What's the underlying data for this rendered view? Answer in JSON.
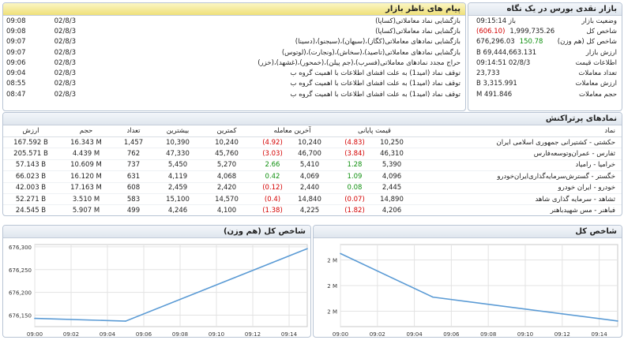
{
  "market": {
    "title": "بازار نقدی بورس در یک نگاه",
    "rows": [
      {
        "label": "وضعیت بازار",
        "value": "باز 09:15:14",
        "extra": ""
      },
      {
        "label": "شاخص کل",
        "value": "1,999,735.26",
        "extra": "(606.10)",
        "extra_class": "neg"
      },
      {
        "label": "شاخص کل (هم وزن)",
        "value": "676,296.03",
        "extra": "150.78",
        "extra_class": "pos"
      },
      {
        "label": "ارزش بازار",
        "value": "69,444,663.131 B",
        "extra": ""
      },
      {
        "label": "اطلاعات قیمت",
        "value": "02/8/3 09:14:51",
        "extra": ""
      },
      {
        "label": "تعداد معاملات",
        "value": "23,733",
        "extra": ""
      },
      {
        "label": "ارزش معاملات",
        "value": "3,315.991 B",
        "extra": ""
      },
      {
        "label": "حجم معاملات",
        "value": "491.846 M",
        "extra": ""
      }
    ]
  },
  "messages": {
    "title": "پیام های ناظر بازار",
    "rows": [
      {
        "date": "02/8/3",
        "time": "09:08",
        "text": "بازگشایی نماد معاملاتی(کساپا)"
      },
      {
        "date": "02/8/3",
        "time": "09:08",
        "text": "بازگشایی نماد معاملاتی(کساپا)"
      },
      {
        "date": "02/8/3",
        "time": "09:07",
        "text": "بازگشایی نمادهای معاملاتی(کگاز)،(سبهان)،(سبجنو)،(دسینا)"
      },
      {
        "date": "02/8/3",
        "time": "09:07",
        "text": "بازگشایی نمادهای معاملاتی(تاصید)،(سخاش)،(ونجارت)،(لوتوس)"
      },
      {
        "date": "02/8/3",
        "time": "09:06",
        "text": "حراج مجدد نمادهای معاملاتی(فسرب)،(جم پیلن)،(خمحور)،(غشهد)،(خزر)"
      },
      {
        "date": "02/8/3",
        "time": "09:04",
        "text": "توقف نماد (امید1) به علت افشای اطلاعات با اهمیت گروه ب"
      },
      {
        "date": "02/8/3",
        "time": "08:55",
        "text": "توقف نماد (امید1) به علت افشای اطلاعات با اهمیت گروه ب"
      },
      {
        "date": "02/8/3",
        "time": "08:47",
        "text": "توقف نماد (امید1) به علت افشای اطلاعات با اهمیت گروه ب"
      }
    ]
  },
  "watchlist": {
    "title": "نمادهای پرتراکنش",
    "headers": {
      "name": "نماد",
      "final": "قیمت پایانی",
      "last": "آخرین معامله",
      "min": "کمترین",
      "max": "بیشترین",
      "count": "تعداد",
      "volume": "حجم",
      "value": "ارزش"
    },
    "rows": [
      {
        "name": "حکشتی - کشتیرانی جمهوری اسلامی ایران",
        "final": "10,250",
        "final_chg": "(4.83)",
        "final_cls": "neg",
        "last": "10,240",
        "last_chg": "(4.92)",
        "last_cls": "neg",
        "min": "10,240",
        "max": "10,390",
        "count": "1,457",
        "volume": "16.343 M",
        "value": "167.592 B"
      },
      {
        "name": "ثفارس - عمران‌وتوسعه‌فارس",
        "final": "46,310",
        "final_chg": "(3.84)",
        "final_cls": "neg",
        "last": "46,700",
        "last_chg": "(3.03)",
        "last_cls": "neg",
        "min": "45,760",
        "max": "47,330",
        "count": "762",
        "volume": "4.439 M",
        "value": "205.571 B"
      },
      {
        "name": "خرامیا - رامیاد",
        "final": "5,390",
        "final_chg": "1.28",
        "final_cls": "pos",
        "last": "5,410",
        "last_chg": "2.66",
        "last_cls": "pos",
        "min": "5,270",
        "max": "5,450",
        "count": "737",
        "volume": "10.609 M",
        "value": "57.143 B"
      },
      {
        "name": "خگستر - گسترش‌سرمایه‌گذاری‌ایران‌خودرو",
        "final": "4,096",
        "final_chg": "1.09",
        "final_cls": "pos",
        "last": "4,069",
        "last_chg": "0.42",
        "last_cls": "pos",
        "min": "4,068",
        "max": "4,119",
        "count": "631",
        "volume": "16.120 M",
        "value": "66.023 B"
      },
      {
        "name": "خودرو - ایران‌ خودرو",
        "final": "2,445",
        "final_chg": "0.08",
        "final_cls": "pos",
        "last": "2,440",
        "last_chg": "(0.12)",
        "last_cls": "neg",
        "min": "2,420",
        "max": "2,459",
        "count": "608",
        "volume": "17.163 M",
        "value": "42.003 B"
      },
      {
        "name": "ثشاهد - سرمایه گذاری شاهد",
        "final": "14,890",
        "final_chg": "(0.07)",
        "final_cls": "neg",
        "last": "14,840",
        "last_chg": "(0.4)",
        "last_cls": "neg",
        "min": "14,570",
        "max": "15,100",
        "count": "583",
        "volume": "3.510 M",
        "value": "52.271 B"
      },
      {
        "name": "فباهنر - مس‌ شهیدباهنر",
        "final": "4,206",
        "final_chg": "(1.82)",
        "final_cls": "neg",
        "last": "4,225",
        "last_chg": "(1.38)",
        "last_cls": "neg",
        "min": "4,100",
        "max": "4,246",
        "count": "499",
        "volume": "5.907 M",
        "value": "24.545 B"
      }
    ]
  },
  "chart_data": [
    {
      "type": "line",
      "title": "شاخص کل (هم وزن)",
      "x": [
        "09:00",
        "09:05",
        "09:15"
      ],
      "series": [
        {
          "values": [
            676143,
            676137,
            676296
          ]
        }
      ],
      "xticks": [
        "09:00",
        "09:02",
        "09:04",
        "09:06",
        "09:08",
        "09:10",
        "09:12",
        "09:14"
      ],
      "yticks": [
        "676,150",
        "676,200",
        "676,250",
        "676,300"
      ],
      "ylim": [
        676125,
        676305
      ],
      "grid": true,
      "color": "#5b9bd5"
    },
    {
      "type": "line",
      "title": "شاخص کل",
      "x": [
        "09:00",
        "09:05",
        "09:15"
      ],
      "series": [
        {
          "values": [
            2005000,
            2001600,
            1999735
          ]
        }
      ],
      "xticks": [
        "09:00",
        "09:02",
        "09:04",
        "09:06",
        "09:08",
        "09:10",
        "09:12",
        "09:14"
      ],
      "yticks": [
        "2 M",
        "2 M",
        "2 M"
      ],
      "ylim": [
        1999300,
        2005700
      ],
      "grid": true,
      "color": "#5b9bd5"
    }
  ]
}
